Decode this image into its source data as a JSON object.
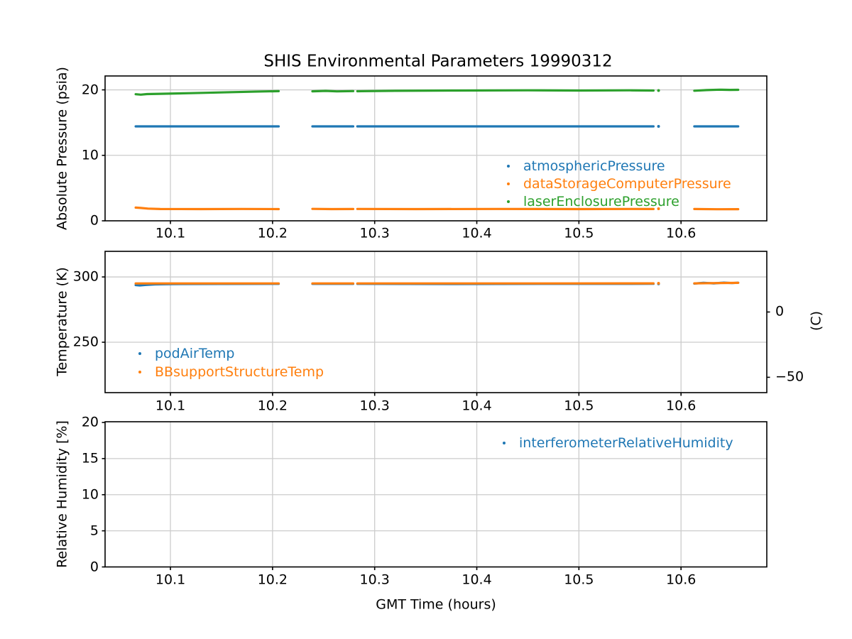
{
  "figure": {
    "title": "SHIS Environmental Parameters 19990312",
    "xlabel": "GMT Time (hours)"
  },
  "colors": {
    "series_blue": "#1f77b4",
    "series_orange": "#ff7f0e",
    "series_green": "#2ca02c",
    "grid": "#cccccc",
    "axis": "#000000",
    "background": "#ffffff"
  },
  "chart_data": [
    {
      "type": "scatter",
      "title": "SHIS Environmental Parameters 19990312",
      "ylabel": "Absolute Pressure (psia)",
      "xlim": [
        10.036,
        10.684
      ],
      "xticks": [
        10.1,
        10.2,
        10.3,
        10.4,
        10.5,
        10.6
      ],
      "xtick_labels": [
        "10.1",
        "10.2",
        "10.3",
        "10.4",
        "10.5",
        "10.6"
      ],
      "ylim": [
        0,
        22.12
      ],
      "yticks": [
        0,
        10,
        20
      ],
      "ytick_labels": [
        "0",
        "10",
        "20"
      ],
      "grid": true,
      "legend_position": "center right",
      "series": [
        {
          "name": "atmosphericPressure",
          "color": "#1f77b4",
          "segments": [
            [
              [
                10.066,
                14.42
              ],
              [
                10.206,
                14.42
              ]
            ],
            [
              [
                10.239,
                14.42
              ],
              [
                10.279,
                14.42
              ]
            ],
            [
              [
                10.283,
                14.42
              ],
              [
                10.573,
                14.42
              ]
            ],
            [
              [
                10.578,
                14.42
              ]
            ],
            [
              [
                10.613,
                14.42
              ],
              [
                10.656,
                14.42
              ]
            ]
          ]
        },
        {
          "name": "dataStorageComputerPressure",
          "color": "#ff7f0e",
          "segments": [
            [
              [
                10.066,
                2.02
              ],
              [
                10.071,
                1.96
              ],
              [
                10.078,
                1.87
              ],
              [
                10.09,
                1.8
              ],
              [
                10.13,
                1.79
              ],
              [
                10.17,
                1.81
              ],
              [
                10.206,
                1.79
              ]
            ],
            [
              [
                10.239,
                1.82
              ],
              [
                10.258,
                1.79
              ],
              [
                10.279,
                1.8
              ]
            ],
            [
              [
                10.283,
                1.81
              ],
              [
                10.34,
                1.79
              ],
              [
                10.42,
                1.81
              ],
              [
                10.5,
                1.79
              ],
              [
                10.55,
                1.81
              ],
              [
                10.573,
                1.8
              ]
            ],
            [
              [
                10.578,
                1.84
              ]
            ],
            [
              [
                10.613,
                1.8
              ],
              [
                10.635,
                1.77
              ],
              [
                10.656,
                1.78
              ]
            ]
          ]
        },
        {
          "name": "laserEnclosurePressure",
          "color": "#2ca02c",
          "segments": [
            [
              [
                10.066,
                19.33
              ],
              [
                10.071,
                19.27
              ],
              [
                10.077,
                19.36
              ],
              [
                10.09,
                19.4
              ],
              [
                10.12,
                19.5
              ],
              [
                10.16,
                19.65
              ],
              [
                10.19,
                19.76
              ],
              [
                10.206,
                19.8
              ]
            ],
            [
              [
                10.239,
                19.78
              ],
              [
                10.252,
                19.84
              ],
              [
                10.263,
                19.77
              ],
              [
                10.279,
                19.81
              ]
            ],
            [
              [
                10.283,
                19.79
              ],
              [
                10.32,
                19.85
              ],
              [
                10.38,
                19.9
              ],
              [
                10.45,
                19.93
              ],
              [
                10.5,
                19.9
              ],
              [
                10.55,
                19.93
              ],
              [
                10.573,
                19.9
              ]
            ],
            [
              [
                10.578,
                19.9
              ]
            ],
            [
              [
                10.613,
                19.87
              ],
              [
                10.625,
                19.96
              ],
              [
                10.638,
                20.03
              ],
              [
                10.648,
                19.99
              ],
              [
                10.656,
                20.01
              ]
            ]
          ]
        }
      ]
    },
    {
      "type": "scatter",
      "ylabel": "Temperature (K)",
      "ylabel_right": "(C)",
      "xlim": [
        10.036,
        10.684
      ],
      "xticks": [
        10.1,
        10.2,
        10.3,
        10.4,
        10.5,
        10.6
      ],
      "xtick_labels": [
        "10.1",
        "10.2",
        "10.3",
        "10.4",
        "10.5",
        "10.6"
      ],
      "ylim": [
        211.4,
        319.6
      ],
      "yticks": [
        250,
        300
      ],
      "ytick_labels": [
        "250",
        "300"
      ],
      "right_ticks": [
        {
          "celsius": 0,
          "label": "0"
        },
        {
          "celsius": -50,
          "label": "−50"
        }
      ],
      "grid": true,
      "legend_position": "lower left",
      "series": [
        {
          "name": "podAirTemp",
          "color": "#1f77b4",
          "segments": [
            [
              [
                10.066,
                293.8
              ],
              [
                10.07,
                293.5
              ],
              [
                10.076,
                293.9
              ],
              [
                10.085,
                294.3
              ],
              [
                10.1,
                294.55
              ],
              [
                10.15,
                294.65
              ],
              [
                10.206,
                294.7
              ]
            ],
            [
              [
                10.239,
                294.7
              ],
              [
                10.279,
                294.7
              ]
            ],
            [
              [
                10.283,
                294.7
              ],
              [
                10.38,
                294.6
              ],
              [
                10.48,
                294.7
              ],
              [
                10.573,
                294.75
              ]
            ],
            [
              [
                10.578,
                294.75
              ]
            ],
            [
              [
                10.613,
                294.9
              ],
              [
                10.622,
                295.5
              ],
              [
                10.632,
                295.1
              ],
              [
                10.642,
                295.6
              ],
              [
                10.65,
                295.3
              ],
              [
                10.656,
                295.55
              ]
            ]
          ]
        },
        {
          "name": "BBsupportStructureTemp",
          "color": "#ff7f0e",
          "segments": [
            [
              [
                10.066,
                295.0
              ],
              [
                10.12,
                295.0
              ],
              [
                10.206,
                295.0
              ]
            ],
            [
              [
                10.239,
                295.0
              ],
              [
                10.279,
                295.0
              ]
            ],
            [
              [
                10.283,
                295.0
              ],
              [
                10.45,
                295.05
              ],
              [
                10.573,
                295.1
              ]
            ],
            [
              [
                10.578,
                295.1
              ]
            ],
            [
              [
                10.613,
                295.1
              ],
              [
                10.635,
                295.3
              ],
              [
                10.656,
                295.45
              ]
            ]
          ]
        }
      ]
    },
    {
      "type": "scatter",
      "ylabel": "Relative Humidity [%]",
      "xlabel": "GMT Time (hours)",
      "xlim": [
        10.036,
        10.684
      ],
      "xticks": [
        10.1,
        10.2,
        10.3,
        10.4,
        10.5,
        10.6
      ],
      "xtick_labels": [
        "10.1",
        "10.2",
        "10.3",
        "10.4",
        "10.5",
        "10.6"
      ],
      "ylim": [
        0,
        20.1
      ],
      "yticks": [
        0,
        5,
        10,
        15,
        20
      ],
      "ytick_labels": [
        "0",
        "5",
        "10",
        "15",
        "20"
      ],
      "grid": true,
      "legend_position": "upper right",
      "series": [
        {
          "name": "interferometerRelativeHumidity",
          "color": "#1f77b4",
          "segments": []
        }
      ]
    }
  ]
}
